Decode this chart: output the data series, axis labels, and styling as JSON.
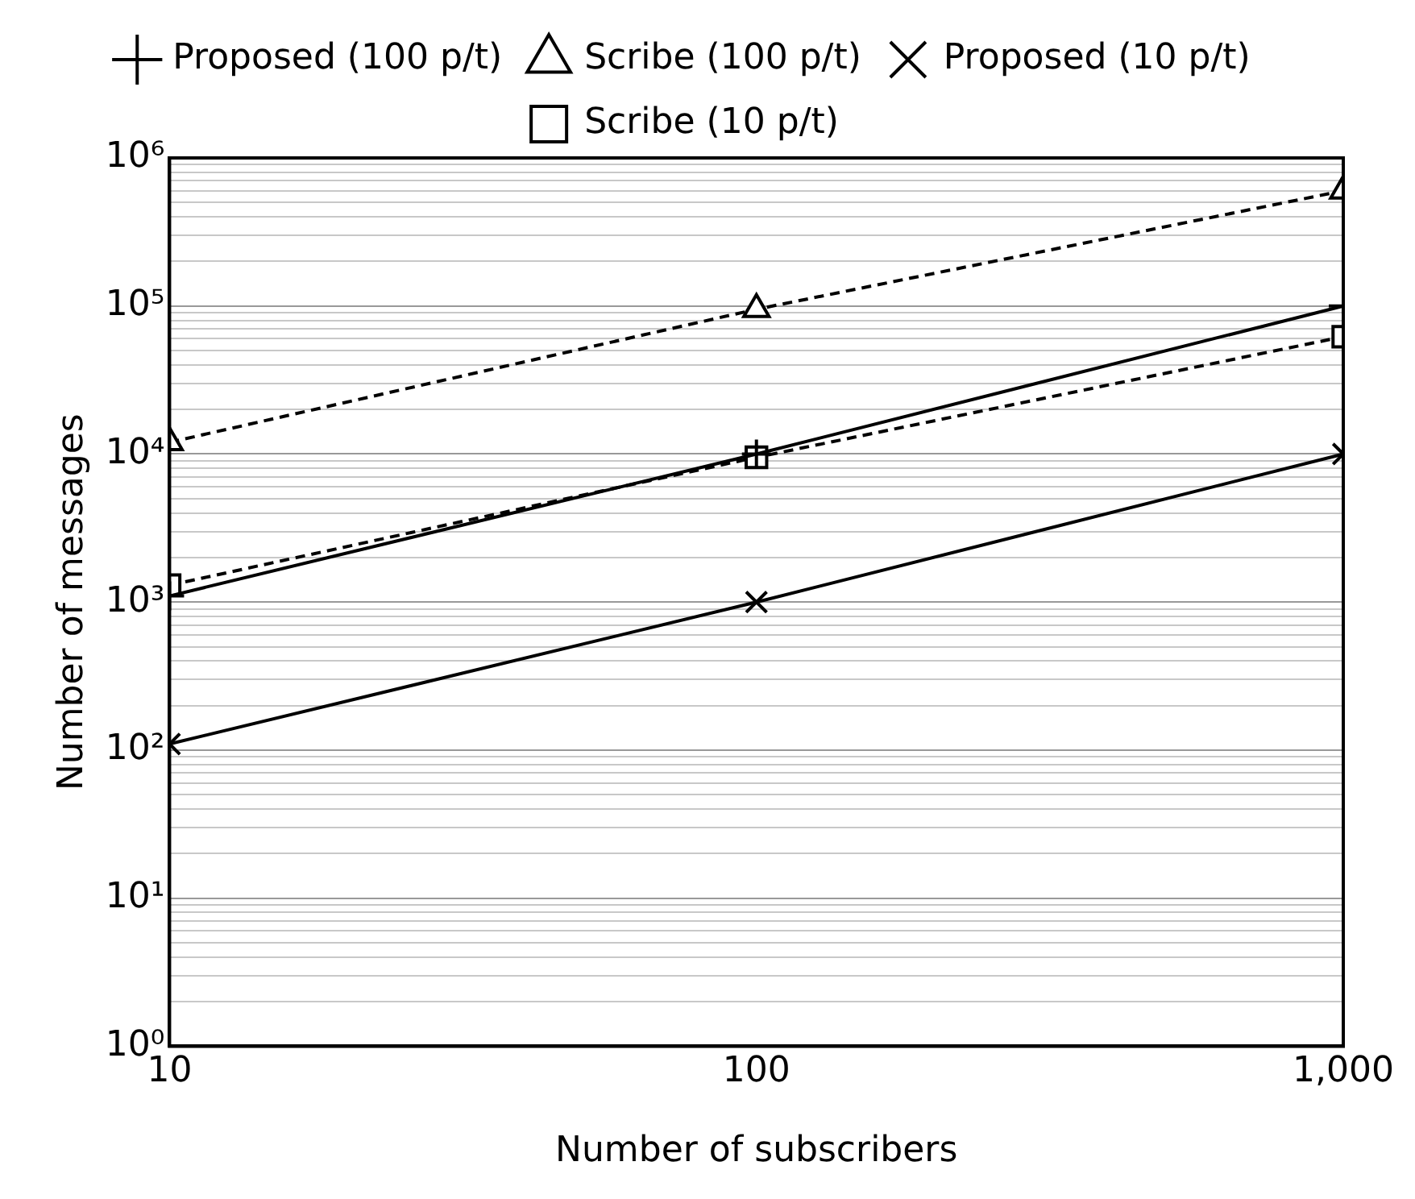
{
  "chart_data": {
    "type": "line",
    "xlabel": "Number of subscribers",
    "ylabel": "Number of messages",
    "log": "xy",
    "grid": "y",
    "legend": "top",
    "x": [
      10,
      100,
      1000
    ],
    "xlim": [
      10,
      1000
    ],
    "xticks": [
      10,
      100,
      {
        "value": 1000,
        "label": "1,000"
      }
    ],
    "ylim": [
      1,
      1000000
    ],
    "yticks": [
      {
        "value": 1,
        "label": "10⁰"
      },
      {
        "value": 2,
        "label": null
      },
      {
        "value": 3,
        "label": null
      },
      {
        "value": 4,
        "label": null
      },
      {
        "value": 5,
        "label": null
      },
      {
        "value": 6,
        "label": null
      },
      {
        "value": 7,
        "label": null
      },
      {
        "value": 8,
        "label": null
      },
      {
        "value": 9,
        "label": null
      },
      {
        "value": 10,
        "label": "10¹"
      },
      {
        "value": 20,
        "label": null
      },
      {
        "value": 30,
        "label": null
      },
      {
        "value": 40,
        "label": null
      },
      {
        "value": 50,
        "label": null
      },
      {
        "value": 60,
        "label": null
      },
      {
        "value": 70,
        "label": null
      },
      {
        "value": 80,
        "label": null
      },
      {
        "value": 90,
        "label": null
      },
      {
        "value": 100,
        "label": "10²"
      },
      {
        "value": 200,
        "label": null
      },
      {
        "value": 300,
        "label": null
      },
      {
        "value": 400,
        "label": null
      },
      {
        "value": 500,
        "label": null
      },
      {
        "value": 600,
        "label": null
      },
      {
        "value": 700,
        "label": null
      },
      {
        "value": 800,
        "label": null
      },
      {
        "value": 900,
        "label": null
      },
      {
        "value": 1000,
        "label": "10³"
      },
      {
        "value": 2000,
        "label": null
      },
      {
        "value": 3000,
        "label": null
      },
      {
        "value": 4000,
        "label": null
      },
      {
        "value": 5000,
        "label": null
      },
      {
        "value": 6000,
        "label": null
      },
      {
        "value": 7000,
        "label": null
      },
      {
        "value": 8000,
        "label": null
      },
      {
        "value": 9000,
        "label": null
      },
      {
        "value": 10000,
        "label": "10⁴"
      },
      {
        "value": 20000,
        "label": null
      },
      {
        "value": 30000,
        "label": null
      },
      {
        "value": 40000,
        "label": null
      },
      {
        "value": 50000,
        "label": null
      },
      {
        "value": 60000,
        "label": null
      },
      {
        "value": 70000,
        "label": null
      },
      {
        "value": 80000,
        "label": null
      },
      {
        "value": 90000,
        "label": null
      },
      {
        "value": 100000,
        "label": "10⁵"
      },
      {
        "value": 200000,
        "label": null
      },
      {
        "value": 300000,
        "label": null
      },
      {
        "value": 400000,
        "label": null
      },
      {
        "value": 500000,
        "label": null
      },
      {
        "value": 600000,
        "label": null
      },
      {
        "value": 700000,
        "label": null
      },
      {
        "value": 800000,
        "label": null
      },
      {
        "value": 900000,
        "label": null
      },
      {
        "value": 1000000,
        "label": "10⁶"
      }
    ],
    "series": [
      {
        "name": "Proposed (100 p/t)",
        "color": "#000000",
        "marker": "cross",
        "line_style": "solid",
        "values": [
          1100,
          10000,
          100000
        ]
      },
      {
        "name": "Scribe (100 p/t)",
        "color": "#000000",
        "marker": "triangle",
        "line_style": "dashed",
        "values": [
          12000,
          95000,
          600000
        ]
      },
      {
        "name": "Proposed (10 p/t)",
        "color": "#000000",
        "marker": "x",
        "line_style": "solid",
        "values": [
          110,
          1000,
          10000
        ]
      },
      {
        "name": "Scribe (10 p/t)",
        "color": "#000000",
        "marker": "square",
        "line_style": "dashed",
        "values": [
          1300,
          9500,
          62000
        ]
      }
    ]
  }
}
